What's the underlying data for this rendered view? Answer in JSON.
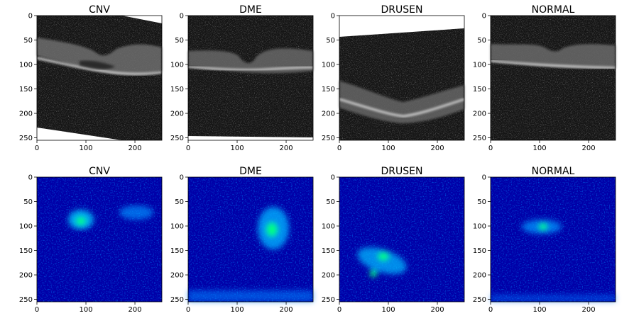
{
  "figure": {
    "panels": [
      {
        "title": "CNV",
        "kind": "oct",
        "variant": "cnv"
      },
      {
        "title": "DME",
        "kind": "oct",
        "variant": "dme"
      },
      {
        "title": "DRUSEN",
        "kind": "oct",
        "variant": "drusen"
      },
      {
        "title": "NORMAL",
        "kind": "oct",
        "variant": "normal"
      },
      {
        "title": "CNV",
        "kind": "saliency",
        "variant": "cnv"
      },
      {
        "title": "DME",
        "kind": "saliency",
        "variant": "dme"
      },
      {
        "title": "DRUSEN",
        "kind": "saliency",
        "variant": "drusen"
      },
      {
        "title": "NORMAL",
        "kind": "saliency",
        "variant": "normal"
      }
    ],
    "x_ticks": [
      "0",
      "100",
      "200"
    ],
    "x_tick_values": [
      0,
      100,
      200
    ],
    "y_ticks": [
      "0",
      "50",
      "100",
      "150",
      "200",
      "250"
    ],
    "y_tick_values": [
      0,
      50,
      100,
      150,
      200,
      250
    ],
    "axis_range": [
      0,
      255
    ],
    "colors": {
      "saliency_background": "#0000a8",
      "saliency_hot": "#00ff80",
      "oct_background": "#151515",
      "wedge": "#ffffff"
    }
  }
}
